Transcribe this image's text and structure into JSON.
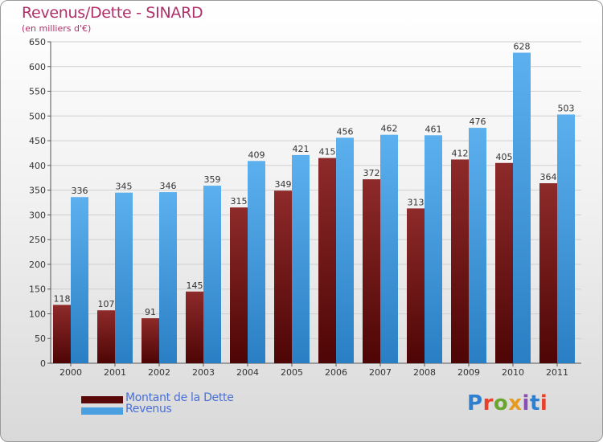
{
  "title": "Revenus/Dette - SINARD",
  "subtitle": "(en milliers d'€)",
  "colors": {
    "debt": "#7a1818",
    "revenue": "#4a9fe0",
    "title": "#b0306a",
    "legend_text": "#4a6fd6",
    "grid": "#cfcfcf"
  },
  "logo": {
    "text": "Proxiti",
    "letter_colors": [
      "#2d7fd0",
      "#e8402a",
      "#6aa52c",
      "#e89a1e",
      "#8a4fb5",
      "#2d7fd0",
      "#e8402a"
    ]
  },
  "legend": [
    {
      "label": "Montant de la Dette",
      "color": "#6a0f0f"
    },
    {
      "label": "Revenus",
      "color": "#4a9fe0"
    }
  ],
  "chart_data": {
    "type": "bar",
    "categories": [
      "2000",
      "2001",
      "2002",
      "2003",
      "2004",
      "2005",
      "2006",
      "2007",
      "2008",
      "2009",
      "2010",
      "2011"
    ],
    "series": [
      {
        "name": "Montant de la Dette",
        "values": [
          118,
          107,
          91,
          145,
          315,
          349,
          415,
          372,
          313,
          412,
          405,
          364
        ]
      },
      {
        "name": "Revenus",
        "values": [
          336,
          345,
          346,
          359,
          409,
          421,
          456,
          462,
          461,
          476,
          628,
          503
        ]
      }
    ],
    "ylim": [
      0,
      650
    ],
    "yticks": [
      0,
      50,
      100,
      150,
      200,
      250,
      300,
      350,
      400,
      450,
      500,
      550,
      600,
      650
    ],
    "grid": true,
    "legend_position": "bottom-left"
  }
}
